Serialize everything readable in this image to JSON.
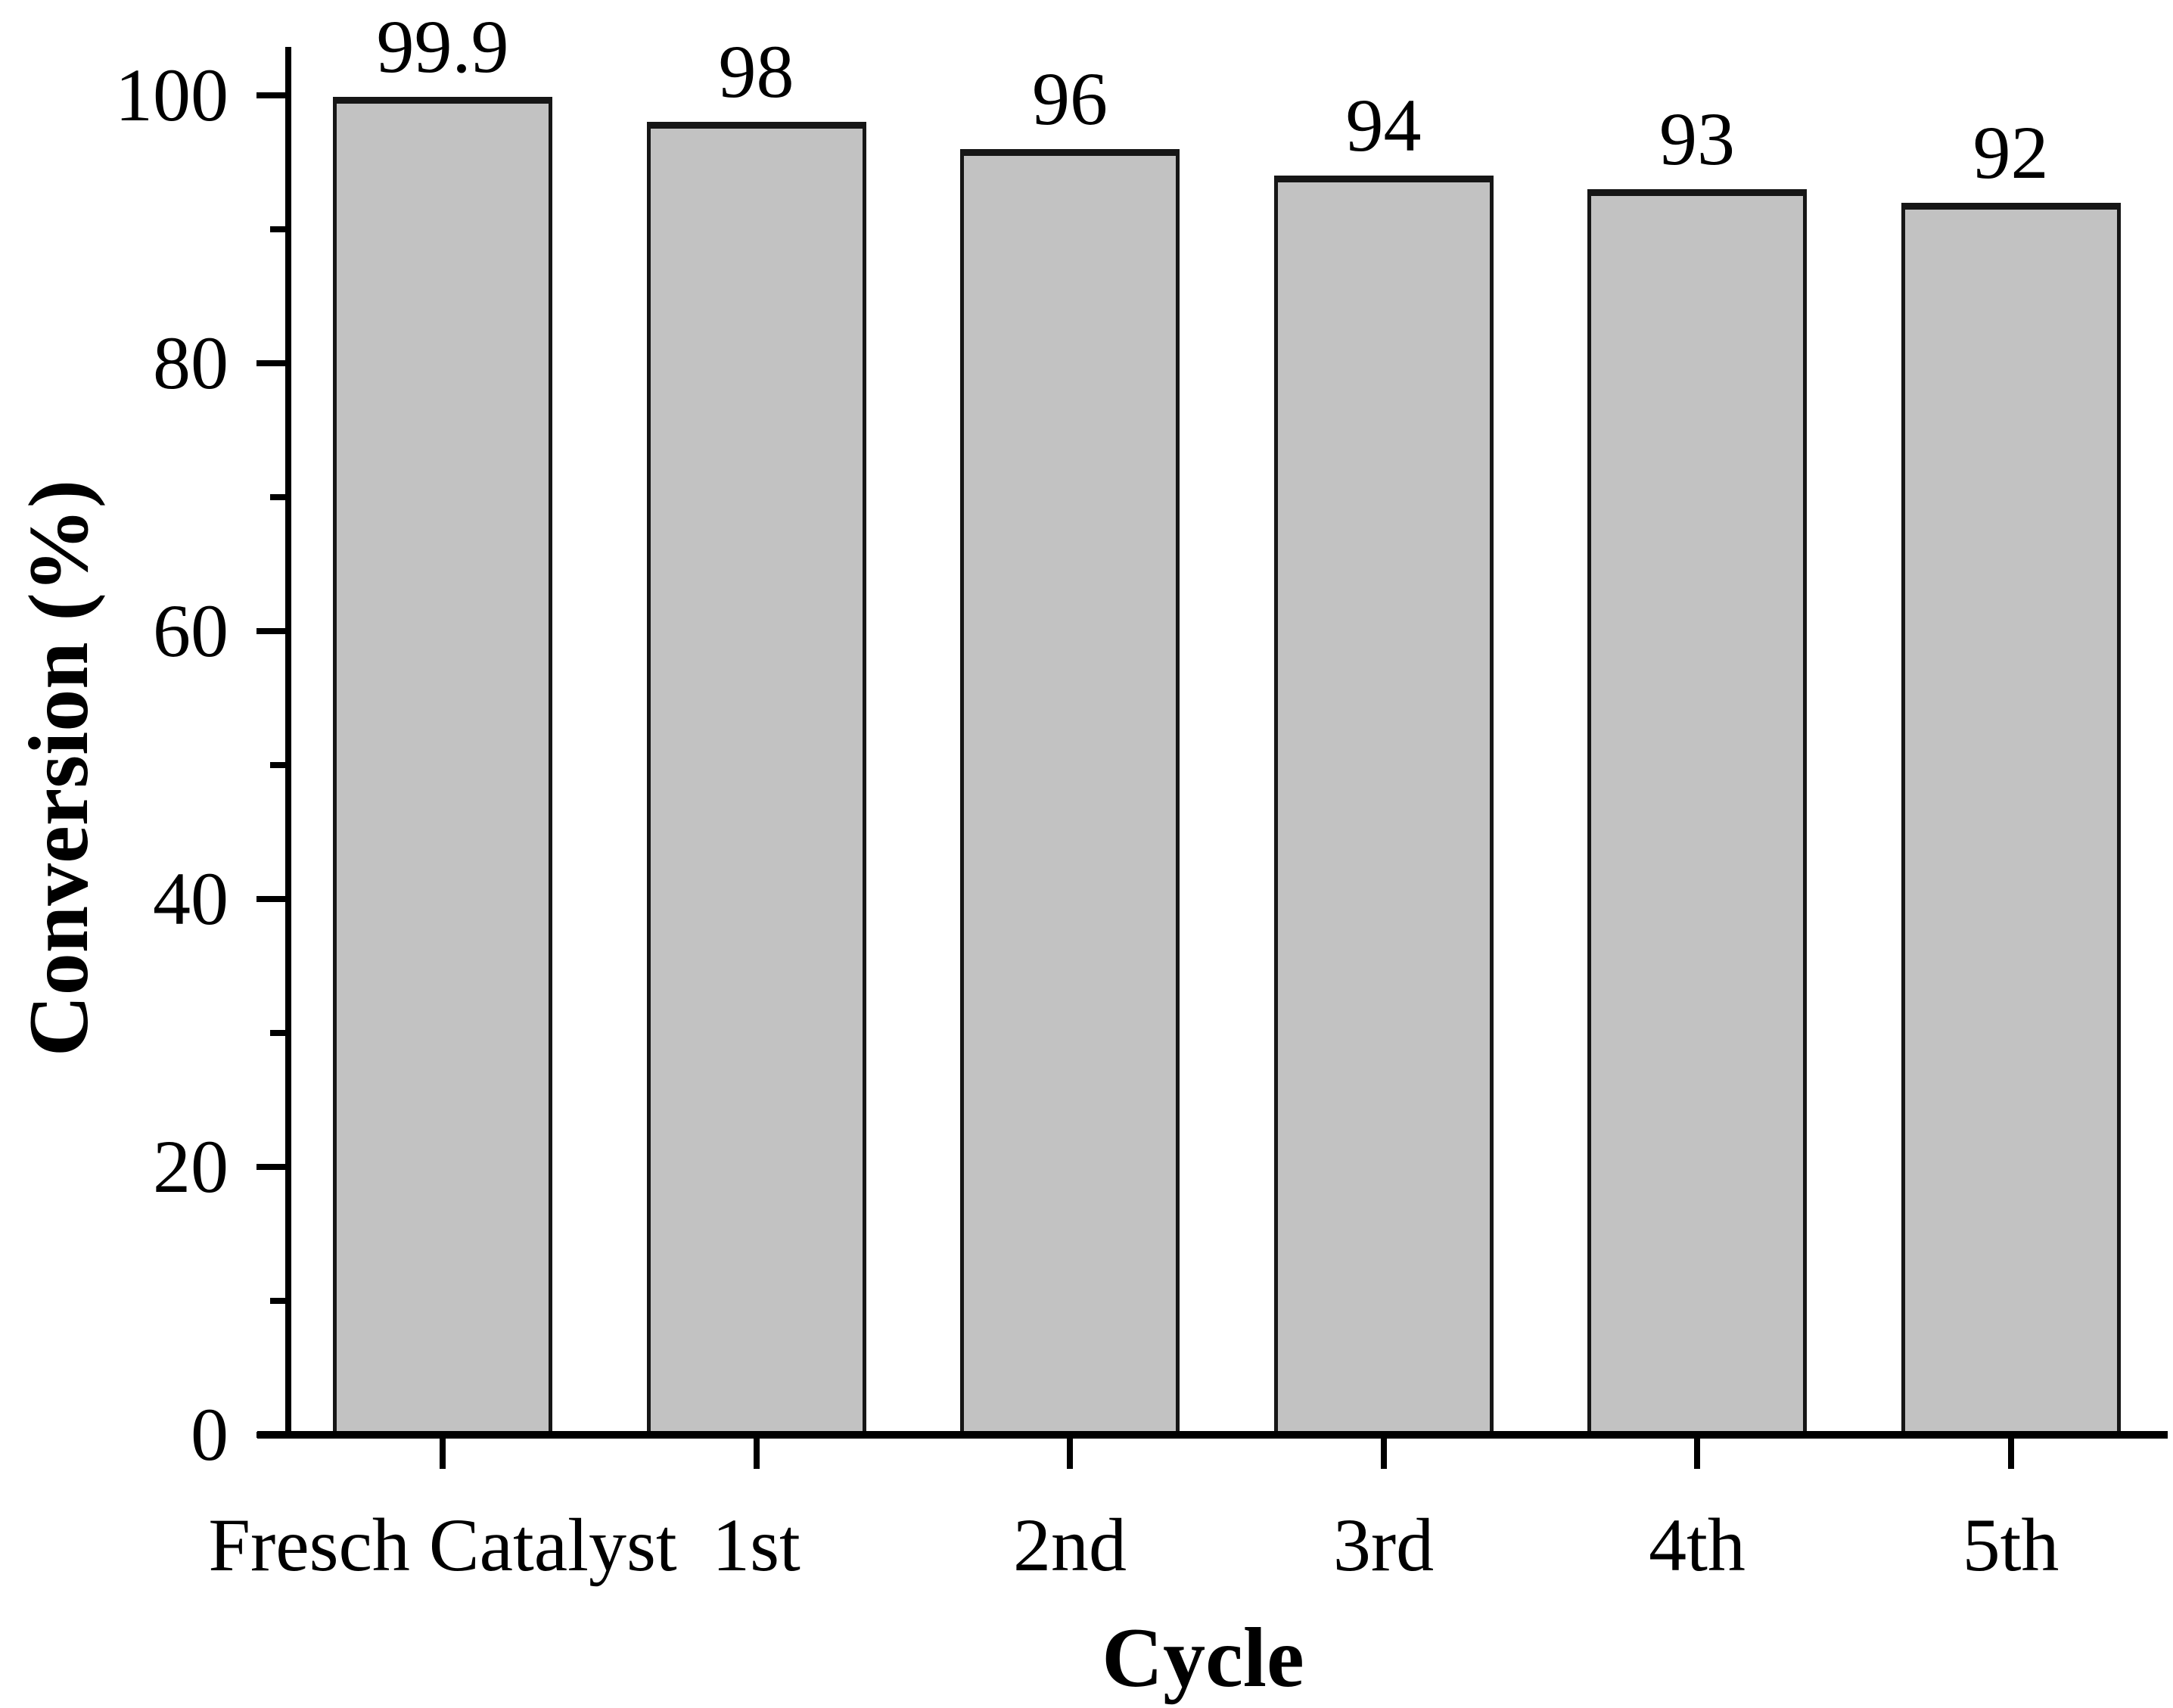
{
  "figure": {
    "background_color": "#ffffff",
    "text_color": "#000000",
    "axis_color": "#000000"
  },
  "chart_data": {
    "type": "bar",
    "title": "",
    "categories": [
      "Fresch Catalyst",
      "1st",
      "2nd",
      "3rd",
      "4th",
      "5th"
    ],
    "values": [
      99.9,
      98,
      96,
      94,
      93,
      92
    ],
    "data_labels": [
      "99.9",
      "98",
      "96",
      "94",
      "93",
      "92"
    ],
    "xlabel": "Cycle",
    "ylabel": "Conversion (%)",
    "ylim": [
      0,
      103
    ],
    "y_major_ticks": [
      0,
      20,
      40,
      60,
      80,
      100
    ],
    "y_minor_ticks": [
      10,
      30,
      50,
      70,
      90
    ],
    "grid": false,
    "legend": false,
    "bar_fill": "#c2c2c2",
    "bar_border": "#161616"
  }
}
